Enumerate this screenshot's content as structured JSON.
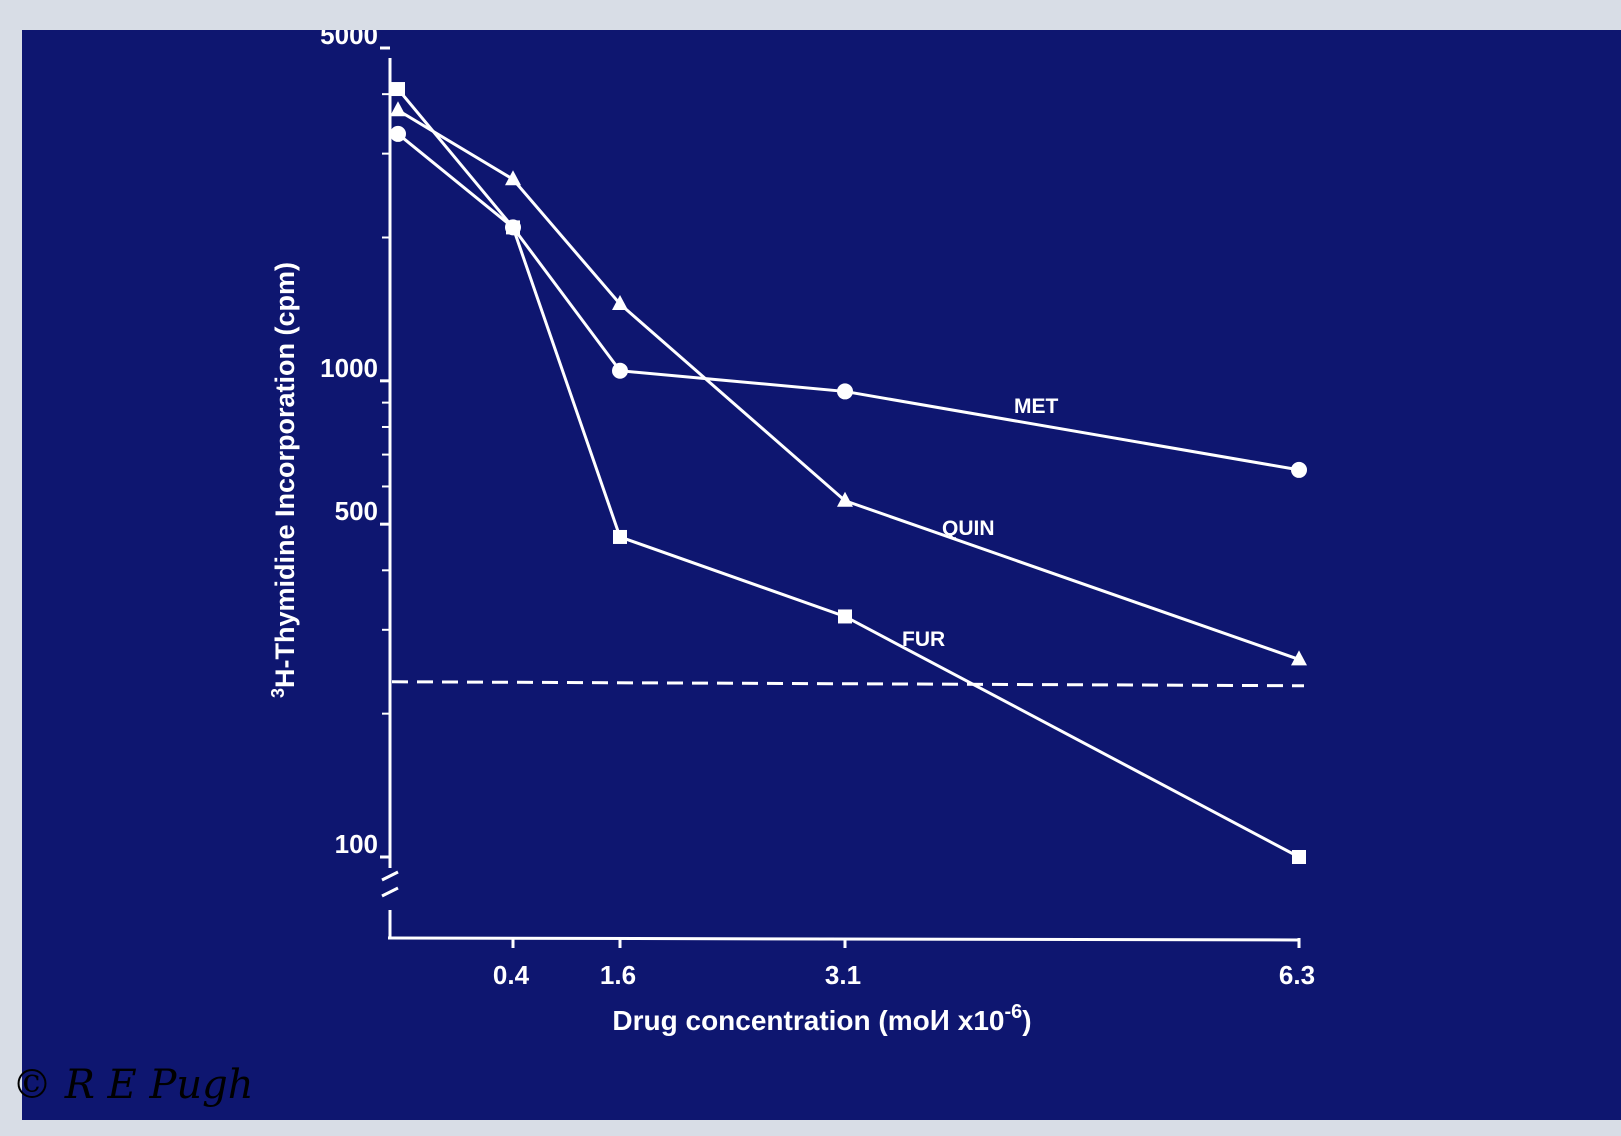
{
  "chart_data": {
    "type": "line",
    "yscale": "log",
    "ylabel": "3H-Thymidine Incorporation (cpm)",
    "ylabel_sup": "3",
    "ylabel_main": "H-Thymidine Incorporation (cpm)",
    "xlabel": "Drug concentration (mol/l x10-6)",
    "xlabel_main": "Drug concentration (mol⁄l x10",
    "xlabel_sup": "-6",
    "xlabel_end": ")",
    "x_ticks": [
      {
        "value": 0.4,
        "label": "0.4"
      },
      {
        "value": 1.6,
        "label": "1.6"
      },
      {
        "value": 3.1,
        "label": "3.1"
      },
      {
        "value": 6.3,
        "label": "6.3"
      }
    ],
    "y_ticks": [
      {
        "value": 100,
        "label": "100"
      },
      {
        "value": 500,
        "label": "500"
      },
      {
        "value": 1000,
        "label": "1000"
      },
      {
        "value": 5000,
        "label": "5000"
      }
    ],
    "ylim": [
      100,
      5000
    ],
    "axis_break": true,
    "series": [
      {
        "name": "MET",
        "marker": "circle",
        "x": [
          0,
          0.4,
          1.6,
          3.1,
          6.3
        ],
        "y": [
          3300,
          2100,
          1050,
          950,
          650
        ]
      },
      {
        "name": "QUIN",
        "marker": "triangle",
        "x": [
          0,
          0.4,
          1.6,
          3.1,
          6.3
        ],
        "y": [
          3700,
          2650,
          1450,
          560,
          260
        ]
      },
      {
        "name": "FUR",
        "marker": "square",
        "x": [
          0,
          0.4,
          1.6,
          3.1,
          6.3
        ],
        "y": [
          4100,
          2100,
          470,
          320,
          100
        ]
      }
    ],
    "reference_line": {
      "style": "dashed",
      "y": 230
    },
    "colors": {
      "background": "#0e1670",
      "foreground": "#ffffff"
    }
  },
  "copyright": "© R E Pugh"
}
